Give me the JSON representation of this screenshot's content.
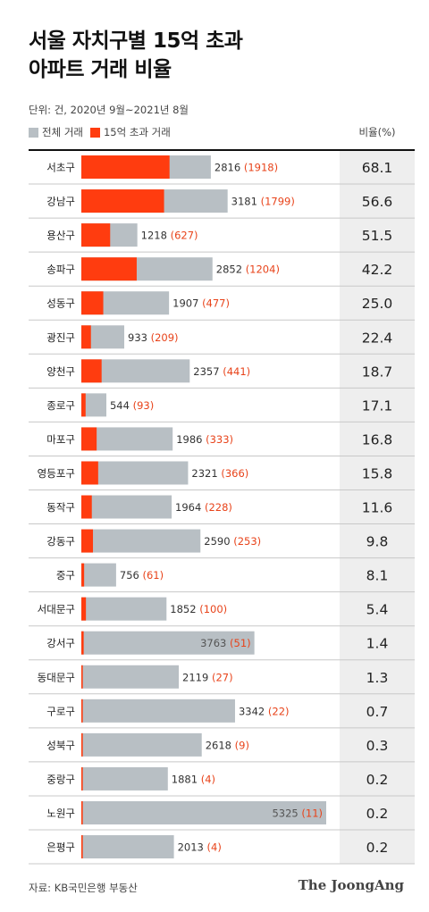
{
  "title_line1": "서울 자치구별 15억 초과",
  "title_line2": "아파트 거래 비율",
  "subtitle": "단위: 건, 2020년 9월~2021년 8월",
  "legend": {
    "total": "전체 거래",
    "over": "15억 초과 거래"
  },
  "ratio_header": "비율(%)",
  "source": "자료: KB국민은행 부동산",
  "brand": "The JoongAng",
  "colors": {
    "total": "#b8bfc4",
    "over": "#ff3c0f",
    "ratio_bg": "#eeeeee"
  },
  "chart_data": {
    "type": "bar",
    "orientation": "horizontal",
    "categories": [
      "서초구",
      "강남구",
      "용산구",
      "송파구",
      "성동구",
      "광진구",
      "양천구",
      "종로구",
      "마포구",
      "영등포구",
      "동작구",
      "강동구",
      "중구",
      "서대문구",
      "강서구",
      "동대문구",
      "구로구",
      "성북구",
      "중랑구",
      "노원구",
      "은평구"
    ],
    "series": [
      {
        "name": "전체 거래",
        "values": [
          2816,
          3181,
          1218,
          2852,
          1907,
          933,
          2357,
          544,
          1986,
          2321,
          1964,
          2590,
          756,
          1852,
          3763,
          2119,
          3342,
          2618,
          1881,
          5325,
          2013
        ]
      },
      {
        "name": "15억 초과 거래",
        "values": [
          1918,
          1799,
          627,
          1204,
          477,
          209,
          441,
          93,
          333,
          366,
          228,
          253,
          61,
          100,
          51,
          27,
          22,
          9,
          4,
          11,
          4
        ]
      }
    ],
    "ratio": [
      "68.1",
      "56.6",
      "51.5",
      "42.2",
      "25.0",
      "22.4",
      "18.7",
      "17.1",
      "16.8",
      "15.8",
      "11.6",
      "9.8",
      "8.1",
      "5.4",
      "1.4",
      "1.3",
      "0.7",
      "0.3",
      "0.2",
      "0.2",
      "0.2"
    ],
    "xlim": [
      0,
      5325
    ],
    "grid": false
  }
}
